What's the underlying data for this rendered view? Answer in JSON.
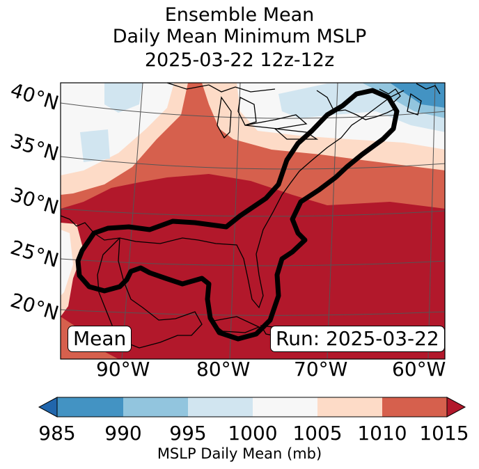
{
  "title": {
    "line1": "Ensemble Mean",
    "line2": "Daily Mean Minimum MSLP",
    "line3": "2025-03-22 12z-12z"
  },
  "latitude_labels": [
    "40°N",
    "35°N",
    "30°N",
    "25°N",
    "20°N"
  ],
  "longitude_labels": [
    "90°W",
    "80°W",
    "70°W",
    "60°W"
  ],
  "annotations": {
    "left_box": "Mean",
    "right_box": "Run: 2025-03-22"
  },
  "colorbar": {
    "label": "MSLP Daily Mean (mb)",
    "ticks": [
      "985",
      "990",
      "995",
      "1000",
      "1005",
      "1010",
      "1015"
    ],
    "colors": {
      "below_985": "#2166ac",
      "985_990": "#4393c3",
      "990_995": "#92c5de",
      "995_1000": "#d1e5f0",
      "1000_1005": "#f7f7f7",
      "1005_1010": "#fddbc7",
      "1010_1015": "#d6604d",
      "above_1015": "#b2182b"
    }
  },
  "map": {
    "region": "Gulf of Mexico / US East Coast",
    "highlight_outline_color": "#000000"
  }
}
